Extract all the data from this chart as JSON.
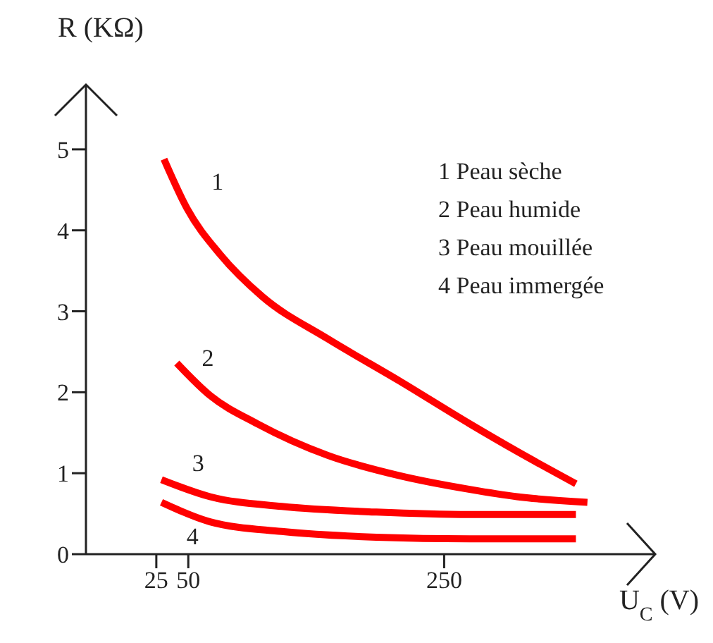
{
  "chart_data": {
    "type": "line",
    "ylabel": "R (KΩ)",
    "xlabel": "U$_{C}$ (V)",
    "xlim": [
      -30,
      415
    ],
    "ylim": [
      0,
      5.8
    ],
    "xticks": [
      25,
      50,
      250
    ],
    "yticks": [
      0,
      1,
      2,
      3,
      4,
      5
    ],
    "grid": false,
    "legend": false,
    "marker": "none",
    "line_style": "solid",
    "series": [
      {
        "name": "1",
        "color": "#ff0000",
        "x": [
          31,
          49,
          75,
          108,
          159,
          215,
          270,
          307,
          353
        ],
        "values": [
          4.88,
          4.27,
          3.7,
          3.18,
          2.66,
          2.14,
          1.61,
          1.27,
          0.87
        ]
      },
      {
        "name": "2",
        "color": "#ff0000",
        "x": [
          41,
          67,
          104,
          159,
          215,
          270,
          307,
          362
        ],
        "values": [
          2.36,
          1.96,
          1.61,
          1.22,
          0.97,
          0.8,
          0.71,
          0.64
        ]
      },
      {
        "name": "3",
        "color": "#ff0000",
        "x": [
          29,
          67,
          123,
          197,
          270,
          353
        ],
        "values": [
          0.92,
          0.71,
          0.59,
          0.52,
          0.49,
          0.49
        ]
      },
      {
        "name": "4",
        "color": "#ff0000",
        "x": [
          29,
          67,
          123,
          197,
          270,
          353
        ],
        "values": [
          0.64,
          0.4,
          0.28,
          0.21,
          0.19,
          0.19
        ]
      }
    ],
    "annotations": [
      "1 Peau sèche",
      "2 Peau humide",
      "3 Peau mouillée",
      "4 Peau immergée"
    ]
  }
}
